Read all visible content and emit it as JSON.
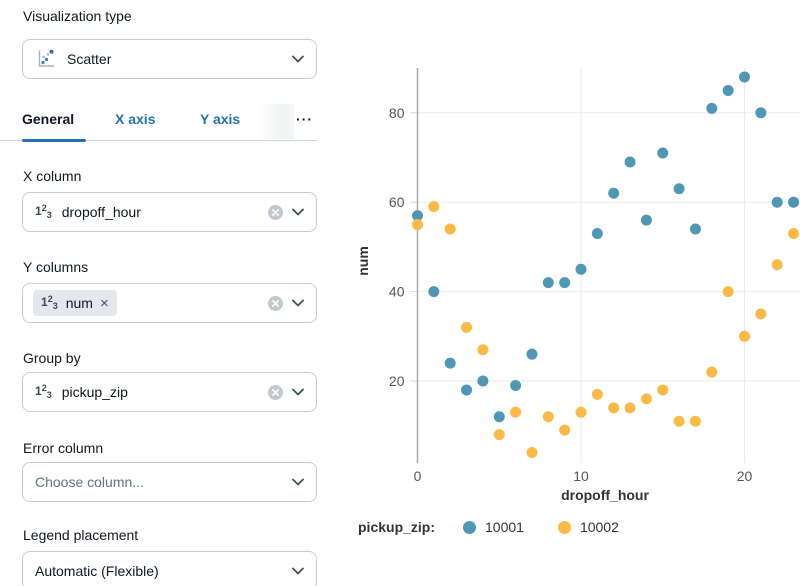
{
  "sidebar": {
    "viz_type": {
      "label": "Visualization type",
      "value": "Scatter"
    },
    "tabs": [
      {
        "label": "General",
        "active": true
      },
      {
        "label": "X axis",
        "active": false
      },
      {
        "label": "Y axis",
        "active": false
      },
      {
        "label": "···",
        "active": false
      }
    ],
    "fields": {
      "x_column": {
        "label": "X column",
        "value": "dropoff_hour"
      },
      "y_columns": {
        "label": "Y columns",
        "chips": [
          {
            "value": "num"
          }
        ]
      },
      "group_by": {
        "label": "Group by",
        "value": "pickup_zip"
      },
      "error_column": {
        "label": "Error column",
        "placeholder": "Choose column..."
      },
      "legend_placement": {
        "label": "Legend placement",
        "value": "Automatic (Flexible)"
      }
    }
  },
  "colors": {
    "accent_blue": "#2272b4",
    "series_blue": "#4f98b5",
    "series_yellow": "#fbba45",
    "gridline": "#eaeaea",
    "axis_line": "#ababab"
  },
  "chart_data": {
    "type": "scatter",
    "xlabel": "dropoff_hour",
    "ylabel": "num",
    "legend_title": "pickup_zip:",
    "legend_position": "bottom",
    "grid": true,
    "x_ticks": [
      0,
      10,
      20
    ],
    "y_ticks": [
      20,
      40,
      60,
      80
    ],
    "xlim": [
      -0.7,
      23.5
    ],
    "ylim": [
      2,
      90
    ],
    "x": [
      0,
      1,
      2,
      3,
      4,
      5,
      6,
      7,
      8,
      9,
      10,
      11,
      12,
      13,
      14,
      15,
      16,
      17,
      18,
      19,
      20,
      21,
      22,
      23
    ],
    "series": [
      {
        "name": "10001",
        "color": "#4f98b5",
        "values": [
          57,
          40,
          24,
          18,
          20,
          12,
          19,
          26,
          42,
          42,
          45,
          53,
          62,
          69,
          56,
          71,
          63,
          54,
          81,
          85,
          88,
          80,
          60,
          60
        ]
      },
      {
        "name": "10002",
        "color": "#fbba45",
        "values": [
          55,
          59,
          54,
          32,
          27,
          8,
          13,
          4,
          12,
          9,
          13,
          17,
          14,
          14,
          16,
          18,
          11,
          11,
          22,
          40,
          30,
          35,
          46,
          53
        ]
      }
    ]
  }
}
